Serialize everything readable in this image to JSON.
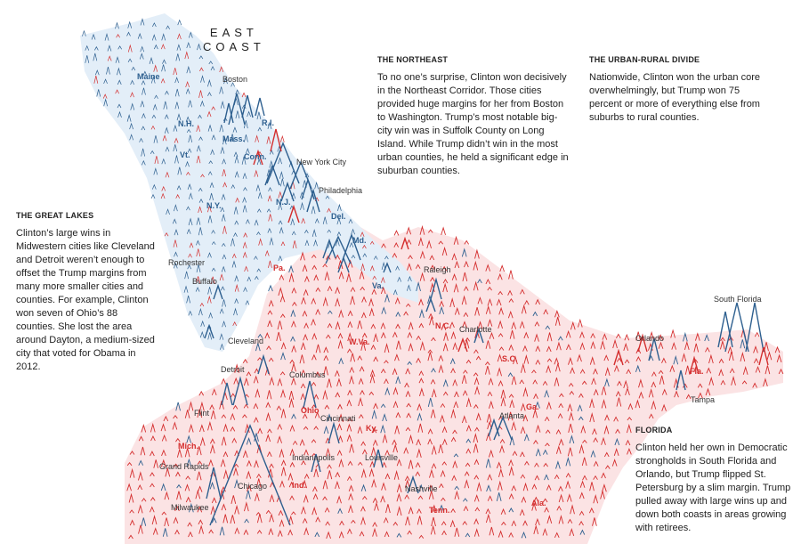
{
  "map_title": [
    "EAST",
    "COAST"
  ],
  "colors": {
    "clinton": "#2d5f8f",
    "trump": "#d42d2d",
    "clinton_area": "#e3eef8",
    "trump_area": "#fbe3e4"
  },
  "cities": {
    "boston": "Boston",
    "new_york": "New York City",
    "philadelphia": "Philadelphia",
    "rochester": "Rochester",
    "buffalo": "Buffalo",
    "raleigh": "Raleigh",
    "south_florida": "South Florida",
    "cleveland": "Cleveland",
    "charlotte": "Charlotte",
    "orlando": "Orlando",
    "detroit": "Detroit",
    "columbus": "Columbus",
    "tampa": "Tampa",
    "flint": "Flint",
    "cincinnati": "Cincinnati",
    "atlanta": "Atlanta",
    "grand_rapids": "Grand Rapids",
    "indianapolis": "Indianapolis",
    "louisville": "Louisville",
    "chicago": "Chicago",
    "nashville": "Nashville",
    "milwaukee": "Milwaukee"
  },
  "states": {
    "maine": "Maine",
    "nh": "N.H.",
    "ri": "R.I.",
    "vt": "Vt.",
    "mass": "Mass.",
    "conn": "Conn.",
    "ny": "N.Y.",
    "nj": "N.J.",
    "del": "Del.",
    "md": "Md.",
    "pa": "Pa.",
    "va": "Va.",
    "nc": "N.C.",
    "wva": "W.Va.",
    "sc": "S.C.",
    "fla": "Fla.",
    "ohio": "Ohio",
    "ga": "Ga.",
    "ky": "Ky.",
    "mich": "Mich.",
    "ind": "Ind.",
    "tenn": "Tenn.",
    "ala": "Ala."
  },
  "notes": {
    "northeast": {
      "heading": "THE NORTHEAST",
      "body": "To no one’s surprise, Clinton won decisively in the Northeast Corridor. Those cities provided huge margins for her from Boston to Washington. Trump’s most notable big-city win was in Suffolk County on Long Island. While Trump didn’t win in the most urban counties, he held a significant edge in suburban counties."
    },
    "urban_rural": {
      "heading": "THE URBAN-RURAL DIVIDE",
      "body": "Nationwide, Clinton won the urban core overwhelmingly, but Trump won 75 percent or more of everything else from suburbs to rural counties."
    },
    "great_lakes": {
      "heading": "THE GREAT LAKES",
      "body": "Clinton’s large wins in Midwestern cities like Cleveland and Detroit weren’t enough to offset the Trump margins from many more smaller cities and counties. For example, Clinton won seven of Ohio’s 88 counties. She lost the area around Dayton, a medium-sized city that voted for Obama in 2012."
    },
    "florida": {
      "heading": "FLORIDA",
      "body": "Clinton held her own in Democratic strongholds in South Florida and Orlando, but Trump flipped St. Petersburg by a slim margin. Trump pulled away with large wins up and down both coasts in areas growing with retirees."
    }
  }
}
